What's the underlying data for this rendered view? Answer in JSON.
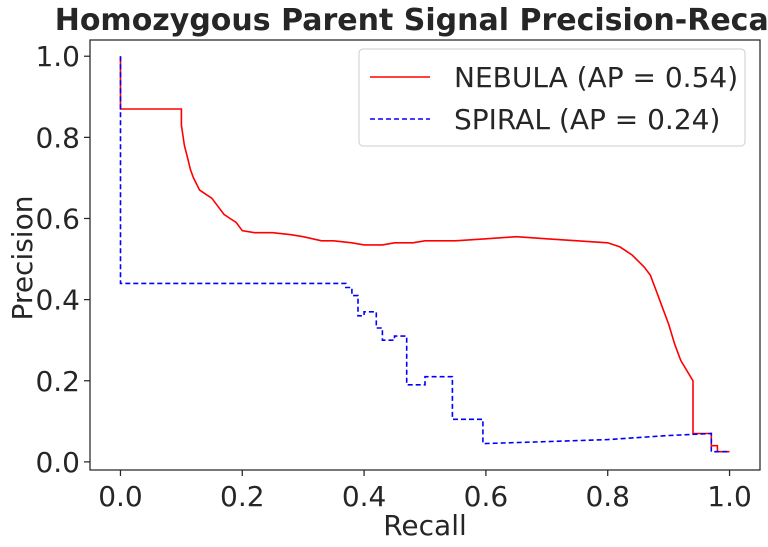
{
  "chart_data": {
    "type": "line",
    "title": "Homozygous Parent Signal Precision-Recall",
    "xlabel": "Recall",
    "ylabel": "Precision",
    "xlim": [
      -0.05,
      1.05
    ],
    "ylim": [
      -0.02,
      1.04
    ],
    "xticks": [
      0.0,
      0.2,
      0.4,
      0.6,
      0.8,
      1.0
    ],
    "xtick_labels": [
      "0.0",
      "0.2",
      "0.4",
      "0.6",
      "0.8",
      "1.0"
    ],
    "yticks": [
      0.0,
      0.2,
      0.4,
      0.6,
      0.8,
      1.0
    ],
    "ytick_labels": [
      "0.0",
      "0.2",
      "0.4",
      "0.6",
      "0.8",
      "1.0"
    ],
    "grid": false,
    "legend_position": "top-right",
    "series": [
      {
        "name": "NEBULA (AP = 0.54)",
        "color": "#ff0000",
        "style": "solid",
        "x": [
          0.0,
          0.0,
          0.1,
          0.1,
          0.105,
          0.11,
          0.115,
          0.12,
          0.13,
          0.14,
          0.15,
          0.16,
          0.17,
          0.18,
          0.19,
          0.2,
          0.22,
          0.25,
          0.28,
          0.3,
          0.33,
          0.35,
          0.38,
          0.4,
          0.43,
          0.45,
          0.48,
          0.5,
          0.55,
          0.6,
          0.65,
          0.7,
          0.75,
          0.8,
          0.82,
          0.84,
          0.86,
          0.87,
          0.88,
          0.89,
          0.9,
          0.91,
          0.92,
          0.94,
          0.94,
          0.97,
          0.97,
          0.98,
          0.98,
          1.0
        ],
        "y": [
          1.0,
          0.87,
          0.87,
          0.83,
          0.78,
          0.75,
          0.72,
          0.7,
          0.67,
          0.66,
          0.65,
          0.63,
          0.61,
          0.6,
          0.59,
          0.57,
          0.565,
          0.565,
          0.56,
          0.555,
          0.545,
          0.545,
          0.54,
          0.535,
          0.535,
          0.54,
          0.54,
          0.545,
          0.545,
          0.55,
          0.555,
          0.55,
          0.545,
          0.54,
          0.53,
          0.51,
          0.48,
          0.46,
          0.42,
          0.38,
          0.34,
          0.29,
          0.25,
          0.2,
          0.07,
          0.07,
          0.04,
          0.04,
          0.025,
          0.025
        ]
      },
      {
        "name": "SPIRAL (AP = 0.24)",
        "color": "#0000ff",
        "style": "dashed",
        "x": [
          0.0,
          0.0,
          0.37,
          0.37,
          0.38,
          0.38,
          0.39,
          0.39,
          0.4,
          0.4,
          0.42,
          0.42,
          0.43,
          0.43,
          0.45,
          0.45,
          0.47,
          0.47,
          0.5,
          0.5,
          0.545,
          0.545,
          0.595,
          0.595,
          0.7,
          0.8,
          0.9,
          0.97,
          0.97,
          1.0
        ],
        "y": [
          1.0,
          0.44,
          0.44,
          0.43,
          0.43,
          0.41,
          0.41,
          0.36,
          0.36,
          0.37,
          0.37,
          0.33,
          0.33,
          0.3,
          0.3,
          0.31,
          0.31,
          0.19,
          0.19,
          0.21,
          0.21,
          0.105,
          0.105,
          0.045,
          0.05,
          0.055,
          0.065,
          0.07,
          0.025,
          0.025
        ]
      }
    ]
  }
}
